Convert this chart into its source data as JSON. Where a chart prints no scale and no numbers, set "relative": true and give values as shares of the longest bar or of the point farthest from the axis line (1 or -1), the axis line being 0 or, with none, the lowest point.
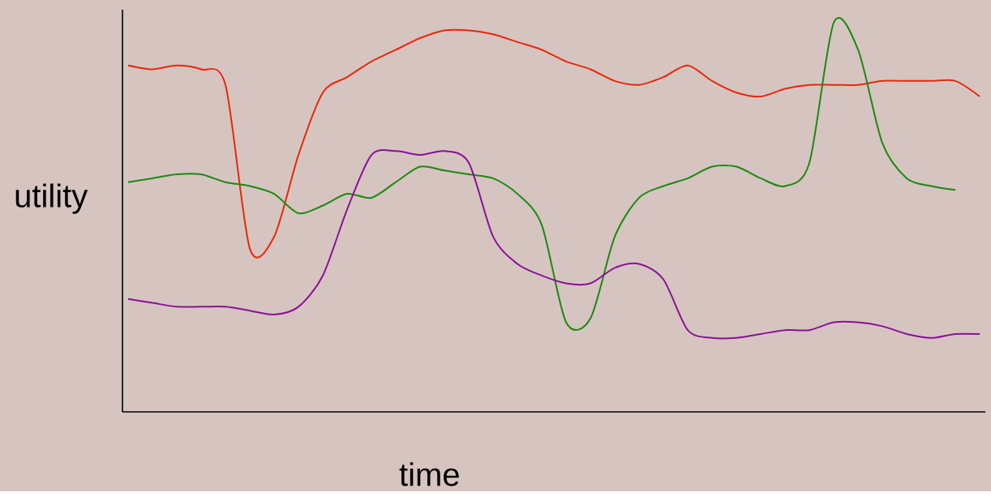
{
  "chart_data": {
    "type": "line",
    "xlabel": "time",
    "ylabel": "utility",
    "relative": true,
    "categories": [
      null,
      null,
      null,
      null,
      null,
      null,
      null,
      null,
      null,
      null,
      null,
      null,
      null,
      null,
      null,
      null,
      null,
      null,
      null,
      null,
      null,
      null,
      null,
      null,
      null,
      null,
      null,
      null,
      null,
      null,
      null,
      null,
      null,
      null,
      null,
      null
    ],
    "series": [
      {
        "color": "#e8280a",
        "values": [
          0.89,
          0.88,
          0.89,
          0.88,
          0.84,
          0.42,
          0.45,
          0.66,
          0.82,
          0.86,
          0.9,
          0.93,
          0.96,
          0.98,
          0.98,
          0.97,
          0.95,
          0.93,
          0.9,
          0.88,
          0.85,
          0.84,
          0.86,
          0.89,
          0.85,
          0.82,
          0.81,
          0.83,
          0.84,
          0.84,
          0.84,
          0.85,
          0.85,
          0.85,
          0.85,
          0.81
        ]
      },
      {
        "color": "#1a8a10",
        "values": [
          0.59,
          0.6,
          0.61,
          0.61,
          0.59,
          0.58,
          0.56,
          0.51,
          0.53,
          0.56,
          0.55,
          0.59,
          0.63,
          0.62,
          0.61,
          0.6,
          0.56,
          0.48,
          0.23,
          0.24,
          0.45,
          0.55,
          0.58,
          0.6,
          0.63,
          0.63,
          0.6,
          0.58,
          0.64,
          1.0,
          0.93,
          0.69,
          0.6,
          0.58,
          0.57,
          null
        ]
      },
      {
        "color": "#8a109a",
        "values": [
          0.29,
          0.28,
          0.27,
          0.27,
          0.27,
          0.26,
          0.25,
          0.27,
          0.35,
          0.52,
          0.66,
          0.67,
          0.66,
          0.67,
          0.64,
          0.45,
          0.38,
          0.35,
          0.33,
          0.33,
          0.37,
          0.38,
          0.34,
          0.21,
          0.19,
          0.19,
          0.2,
          0.21,
          0.21,
          0.23,
          0.23,
          0.22,
          0.2,
          0.19,
          0.2,
          0.2
        ]
      }
    ]
  }
}
